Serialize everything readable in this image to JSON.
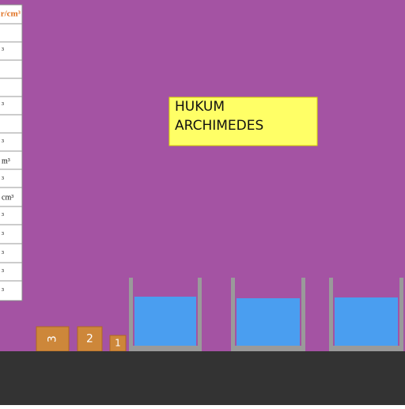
{
  "table": {
    "header": "r/cm³",
    "rows": [
      "³",
      "³",
      "³",
      "m³",
      "³",
      "cm³",
      "³",
      "³",
      "³",
      "³",
      "³"
    ]
  },
  "title": [
    "HUKUM",
    "ARCHIMEDES"
  ],
  "blocks": [
    "3",
    "2",
    "1"
  ]
}
